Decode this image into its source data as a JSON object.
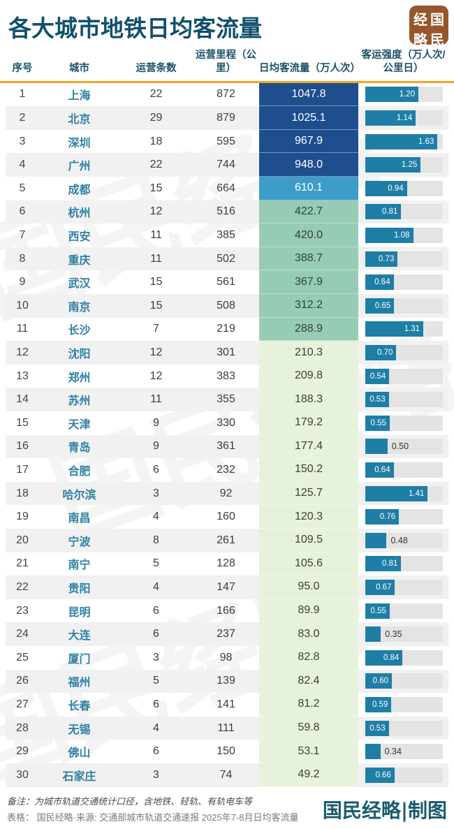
{
  "title": "各大城市地铁日均客流量",
  "logo": {
    "chars": [
      "经",
      "国",
      "略",
      "民"
    ]
  },
  "watermark": {
    "text": "国民经略"
  },
  "table": {
    "headers": [
      "序号",
      "城市",
      "运营条数",
      "运营里程（公里）",
      "日均客流量（万人次）",
      "客运强度（万人次/公里日）"
    ]
  },
  "colors": {
    "accent_orange": "#f6a41f",
    "title_teal": "#11506a",
    "city_teal": "#2e81a3",
    "bar_teal": "#1e7ea6",
    "bar_track_gray": "#e4e4e4",
    "logo_brown": "#96572c",
    "flow_tiers": [
      {
        "max_rank": 4,
        "bg": "#1f4e8e",
        "fg": "#ffffff"
      },
      {
        "max_rank": 5,
        "bg": "#3d9dc8",
        "fg": "#ffffff"
      },
      {
        "max_rank": 11,
        "bg": "#97ccb4",
        "fg": "#30403a"
      },
      {
        "max_rank": 30,
        "bg": "#e7f2db",
        "fg": "#3c3c3c"
      }
    ]
  },
  "footer": {
    "note1": "备注：为城市轨道交通统计口径，含地铁、轻轨、有轨电车等",
    "note2": "表格： 国民经略·来源: 交通部城市轨道交通速报 2025年7-8月日均客流量",
    "credit": "国民经略|制图"
  },
  "chart_data": {
    "type": "table",
    "title": "各大城市地铁日均客流量",
    "columns": [
      "序号",
      "城市",
      "运营条数",
      "运营里程（公里）",
      "日均客流量（万人次）",
      "客运强度（万人次/公里日）"
    ],
    "bar_column": "客运强度（万人次/公里日）",
    "bar_scale_max": 1.75,
    "bar_label_inside_min": 0.52,
    "rows": [
      [
        1,
        "上海",
        22,
        872,
        1047.8,
        1.2
      ],
      [
        2,
        "北京",
        29,
        879,
        1025.1,
        1.14
      ],
      [
        3,
        "深圳",
        18,
        595,
        967.9,
        1.63
      ],
      [
        4,
        "广州",
        22,
        744,
        948.0,
        1.25
      ],
      [
        5,
        "成都",
        15,
        664,
        610.1,
        0.94
      ],
      [
        6,
        "杭州",
        12,
        516,
        422.7,
        0.81
      ],
      [
        7,
        "西安",
        11,
        385,
        420.0,
        1.08
      ],
      [
        8,
        "重庆",
        11,
        502,
        388.7,
        0.73
      ],
      [
        9,
        "武汉",
        15,
        561,
        367.9,
        0.64
      ],
      [
        10,
        "南京",
        15,
        508,
        312.2,
        0.65
      ],
      [
        11,
        "长沙",
        7,
        219,
        288.9,
        1.31
      ],
      [
        12,
        "沈阳",
        12,
        301,
        210.3,
        0.7
      ],
      [
        13,
        "郑州",
        12,
        383,
        209.8,
        0.54
      ],
      [
        14,
        "苏州",
        11,
        355,
        188.3,
        0.53
      ],
      [
        15,
        "天津",
        9,
        330,
        179.2,
        0.55
      ],
      [
        16,
        "青岛",
        9,
        361,
        177.4,
        0.5
      ],
      [
        17,
        "合肥",
        6,
        232,
        150.2,
        0.64
      ],
      [
        18,
        "哈尔滨",
        3,
        92,
        125.7,
        1.41
      ],
      [
        19,
        "南昌",
        4,
        160,
        120.3,
        0.76
      ],
      [
        20,
        "宁波",
        8,
        261,
        109.5,
        0.48
      ],
      [
        21,
        "南宁",
        5,
        128,
        105.6,
        0.81
      ],
      [
        22,
        "贵阳",
        4,
        147,
        95.0,
        0.67
      ],
      [
        23,
        "昆明",
        6,
        166,
        89.9,
        0.55
      ],
      [
        24,
        "大连",
        6,
        237,
        83.0,
        0.35
      ],
      [
        25,
        "厦门",
        3,
        98,
        82.8,
        0.84
      ],
      [
        26,
        "福州",
        5,
        139,
        82.4,
        0.6
      ],
      [
        27,
        "长春",
        6,
        141,
        81.2,
        0.59
      ],
      [
        28,
        "无锡",
        4,
        111,
        59.8,
        0.53
      ],
      [
        29,
        "佛山",
        6,
        150,
        53.1,
        0.34
      ],
      [
        30,
        "石家庄",
        3,
        74,
        49.2,
        0.66
      ]
    ]
  }
}
